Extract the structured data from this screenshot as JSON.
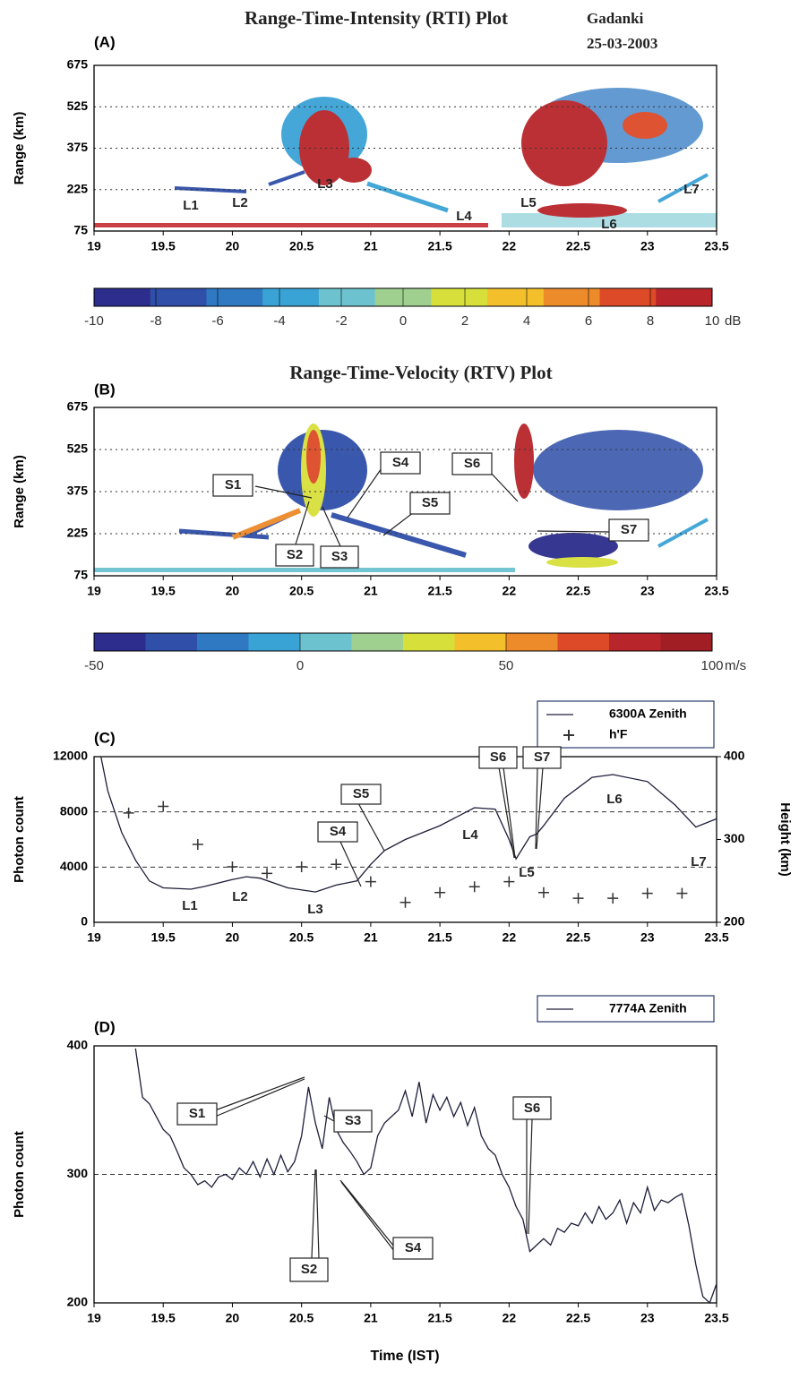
{
  "chart_data": [
    {
      "type": "heatmap",
      "panel": "(A)",
      "title": "Range-Time-Intensity (RTI) Plot",
      "location": "Gadanki",
      "date": "25-03-2003",
      "y_label": "Range (km)",
      "xlim": [
        19,
        23.5
      ],
      "xticks": [
        19,
        19.5,
        20,
        20.5,
        21,
        21.5,
        22,
        22.5,
        23,
        23.5
      ],
      "ylim": [
        75,
        675
      ],
      "yticks": [
        75,
        225,
        375,
        525,
        675
      ],
      "grid": true,
      "annotations": [
        "L1",
        "L2",
        "L3",
        "L4",
        "L5",
        "L6",
        "L7"
      ],
      "colorbar": {
        "lim": [
          -10,
          10
        ],
        "ticks": [
          -10,
          -8,
          -6,
          -4,
          -2,
          0,
          2,
          4,
          6,
          8,
          10
        ],
        "unit": "dB",
        "colors": [
          "#2c2d8c",
          "#2f4fa8",
          "#2f79c2",
          "#3aa3d6",
          "#6cc3cf",
          "#9fd08f",
          "#d7e03a",
          "#f3c02c",
          "#ed8a2a",
          "#dd4a27",
          "#b8252a"
        ]
      }
    },
    {
      "type": "heatmap",
      "panel": "(B)",
      "title": "Range-Time-Velocity (RTV) Plot",
      "y_label": "Range (km)",
      "xlim": [
        19,
        23.5
      ],
      "xticks": [
        19,
        19.5,
        20,
        20.5,
        21,
        21.5,
        22,
        22.5,
        23,
        23.5
      ],
      "ylim": [
        75,
        675
      ],
      "yticks": [
        75,
        225,
        375,
        525,
        675
      ],
      "grid": true,
      "annotations": [
        "S1",
        "S2",
        "S3",
        "S4",
        "S5",
        "S6",
        "S7"
      ],
      "colorbar": {
        "lim": [
          -50,
          100
        ],
        "ticks": [
          -50,
          0,
          50,
          100
        ],
        "unit": "m/s",
        "colors": [
          "#2c2d8c",
          "#2f4fa8",
          "#2f79c2",
          "#3aa3d6",
          "#6cc3cf",
          "#9fd08f",
          "#d7e03a",
          "#f3c02c",
          "#ed8a2a",
          "#dd4a27",
          "#b8252a",
          "#a01e24"
        ]
      }
    },
    {
      "type": "line",
      "panel": "(C)",
      "y_label": "Photon count",
      "y2_label": "Height (km)",
      "xlim": [
        19,
        23.5
      ],
      "xticks": [
        19,
        19.5,
        20,
        20.5,
        21,
        21.5,
        22,
        22.5,
        23,
        23.5
      ],
      "ylim": [
        0,
        12000
      ],
      "yticks": [
        0,
        4000,
        8000,
        12000
      ],
      "y2lim": [
        200,
        400
      ],
      "y2ticks": [
        200,
        300,
        400
      ],
      "grid": true,
      "series": [
        {
          "name": "6300A Zenith",
          "color": "#1d1d3a",
          "x": [
            19.05,
            19.1,
            19.2,
            19.3,
            19.4,
            19.5,
            19.7,
            19.8,
            20,
            20.1,
            20.2,
            20.4,
            20.6,
            20.75,
            20.9,
            21,
            21.1,
            21.25,
            21.5,
            21.75,
            21.9,
            22,
            22.05,
            22.15,
            22.2,
            22.25,
            22.4,
            22.6,
            22.75,
            23,
            23.2,
            23.35,
            23.5
          ],
          "values": [
            12000,
            9500,
            6500,
            4500,
            3000,
            2500,
            2400,
            2600,
            3100,
            3300,
            3200,
            2500,
            2200,
            2700,
            3000,
            4200,
            5200,
            6000,
            7000,
            8300,
            8200,
            6000,
            4600,
            6200,
            6400,
            7000,
            9000,
            10500,
            10700,
            10200,
            8500,
            6900,
            7500
          ]
        },
        {
          "name": "h'F",
          "type": "scatter",
          "marker": "+",
          "axis": "y2",
          "color": "#333333",
          "x": [
            19.25,
            19.5,
            19.75,
            20,
            20.25,
            20.5,
            20.75,
            21,
            21.25,
            21.5,
            21.75,
            22,
            22.25,
            22.5,
            22.75,
            23,
            23.25
          ],
          "values": [
            332,
            340,
            294,
            267,
            259,
            267,
            270,
            249,
            224,
            236,
            243,
            249,
            236,
            229,
            229,
            235,
            235
          ]
        }
      ],
      "annotations": [
        "S4",
        "S5",
        "S6",
        "S7",
        "L1",
        "L2",
        "L3",
        "L4",
        "L5",
        "L6",
        "L7"
      ]
    },
    {
      "type": "line",
      "panel": "(D)",
      "y_label": "Photon count",
      "x_label": "Time (IST)",
      "xlim": [
        19,
        23.5
      ],
      "xticks": [
        19,
        19.5,
        20,
        20.5,
        21,
        21.5,
        22,
        22.5,
        23,
        23.5
      ],
      "ylim": [
        200,
        400
      ],
      "yticks": [
        200,
        300,
        400
      ],
      "grid": true,
      "series": [
        {
          "name": "7774A Zenith",
          "color": "#1d1d3a",
          "x": [
            19.3,
            19.35,
            19.4,
            19.45,
            19.5,
            19.55,
            19.6,
            19.65,
            19.7,
            19.75,
            19.8,
            19.85,
            19.9,
            19.95,
            20,
            20.05,
            20.1,
            20.15,
            20.2,
            20.25,
            20.3,
            20.35,
            20.4,
            20.45,
            20.5,
            20.55,
            20.6,
            20.65,
            20.7,
            20.75,
            20.8,
            20.85,
            20.9,
            20.95,
            21,
            21.05,
            21.1,
            21.15,
            21.2,
            21.25,
            21.3,
            21.35,
            21.4,
            21.45,
            21.5,
            21.55,
            21.6,
            21.65,
            21.7,
            21.75,
            21.8,
            21.85,
            21.9,
            21.95,
            22,
            22.05,
            22.1,
            22.15,
            22.2,
            22.25,
            22.3,
            22.35,
            22.4,
            22.45,
            22.5,
            22.55,
            22.6,
            22.65,
            22.7,
            22.75,
            22.8,
            22.85,
            22.9,
            22.95,
            23,
            23.05,
            23.1,
            23.15,
            23.2,
            23.25,
            23.3,
            23.35,
            23.4,
            23.45,
            23.5
          ],
          "values": [
            398,
            360,
            355,
            345,
            335,
            330,
            318,
            305,
            300,
            292,
            295,
            290,
            298,
            300,
            296,
            305,
            300,
            310,
            298,
            312,
            300,
            315,
            302,
            310,
            330,
            368,
            340,
            320,
            360,
            335,
            325,
            318,
            310,
            300,
            305,
            330,
            340,
            345,
            350,
            365,
            345,
            372,
            340,
            362,
            350,
            360,
            345,
            356,
            338,
            352,
            330,
            320,
            315,
            300,
            290,
            275,
            265,
            240,
            245,
            250,
            245,
            258,
            255,
            262,
            260,
            270,
            262,
            275,
            265,
            270,
            280,
            262,
            278,
            270,
            290,
            272,
            280,
            278,
            282,
            285,
            260,
            230,
            205,
            200,
            215
          ]
        }
      ],
      "annotations": [
        "S1",
        "S2",
        "S3",
        "S4",
        "S6"
      ]
    }
  ]
}
